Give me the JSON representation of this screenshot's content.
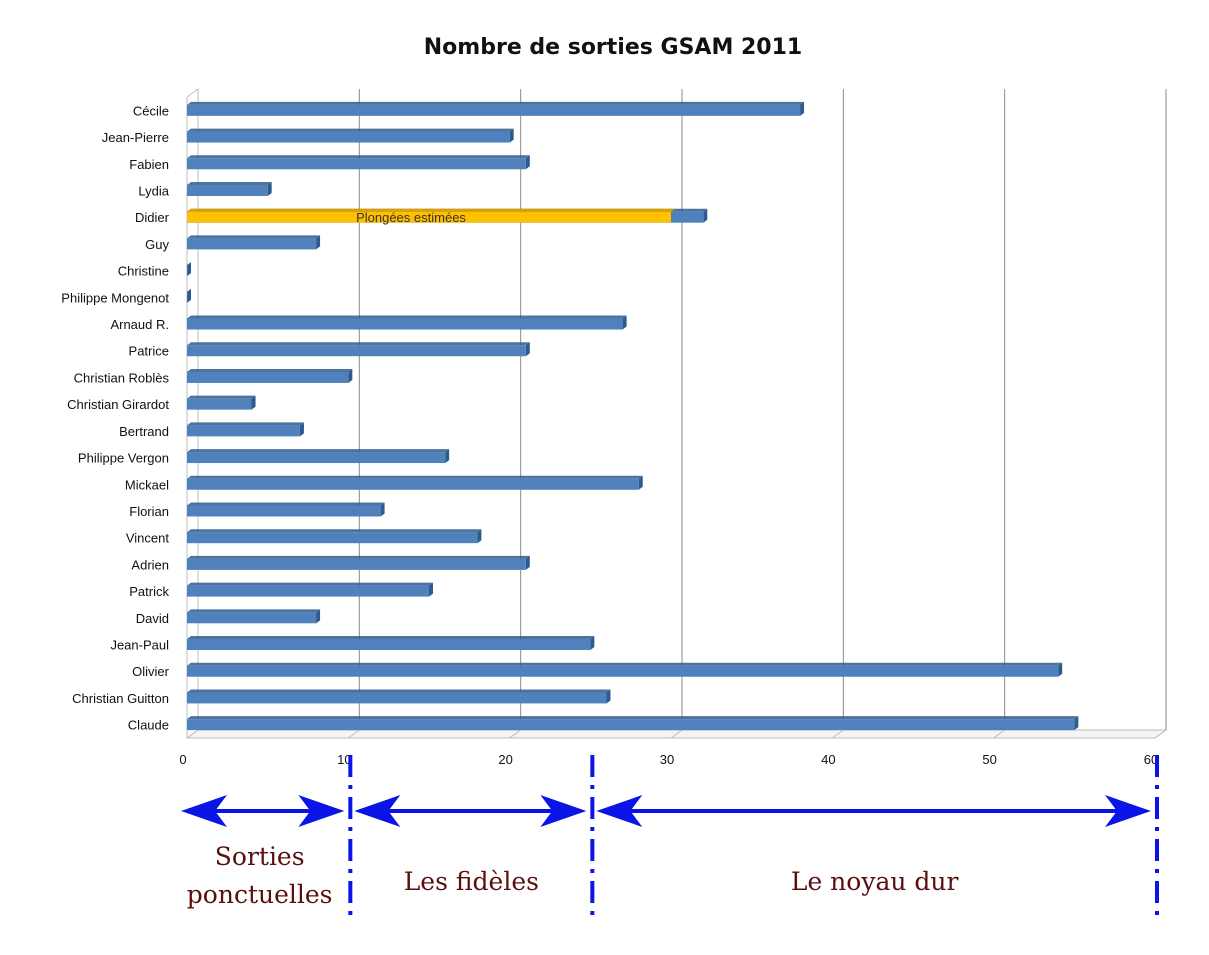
{
  "chart_data": {
    "type": "bar",
    "orientation": "horizontal",
    "title": "Nombre de sorties GSAM 2011",
    "xlabel": "",
    "ylabel": "",
    "xlim": [
      0,
      60
    ],
    "ticks": [
      "0",
      "10",
      "20",
      "30",
      "40",
      "50",
      "60"
    ],
    "grid": true,
    "colors": {
      "bar": "#4f81bd",
      "bar_dark": "#2f5a8e",
      "highlight": "#ffc000",
      "arrow": "#0a14e6"
    },
    "categories": [
      "Cécile",
      "Jean-Pierre",
      "Fabien",
      "Lydia",
      "Didier",
      "Guy",
      "Christine",
      "Philippe Mongenot",
      "Arnaud R.",
      "Patrice",
      "Christian Roblès",
      "Christian Girardot",
      "Bertrand",
      "Philippe Vergon",
      "Mickael",
      "Florian",
      "Vincent",
      "Adrien",
      "Patrick",
      "David",
      "Jean-Paul",
      "Olivier",
      "Christian Guitton",
      "Claude"
    ],
    "values": [
      38,
      20,
      21,
      5,
      32,
      8,
      0,
      0,
      27,
      21,
      10,
      4,
      7,
      16,
      28,
      12,
      18,
      21,
      15,
      8,
      25,
      54,
      26,
      55
    ],
    "annotations": [
      {
        "category": "Didier",
        "from": 0,
        "to": 30,
        "label": "Plongées estimées"
      }
    ],
    "zones": [
      {
        "label_lines": [
          "Sorties",
          "ponctuelles"
        ],
        "from": 0,
        "to": 10
      },
      {
        "label_lines": [
          "Les fidèles"
        ],
        "from": 10,
        "to": 25
      },
      {
        "label_lines": [
          "Le noyau dur"
        ],
        "from": 25,
        "to": 60
      }
    ]
  }
}
